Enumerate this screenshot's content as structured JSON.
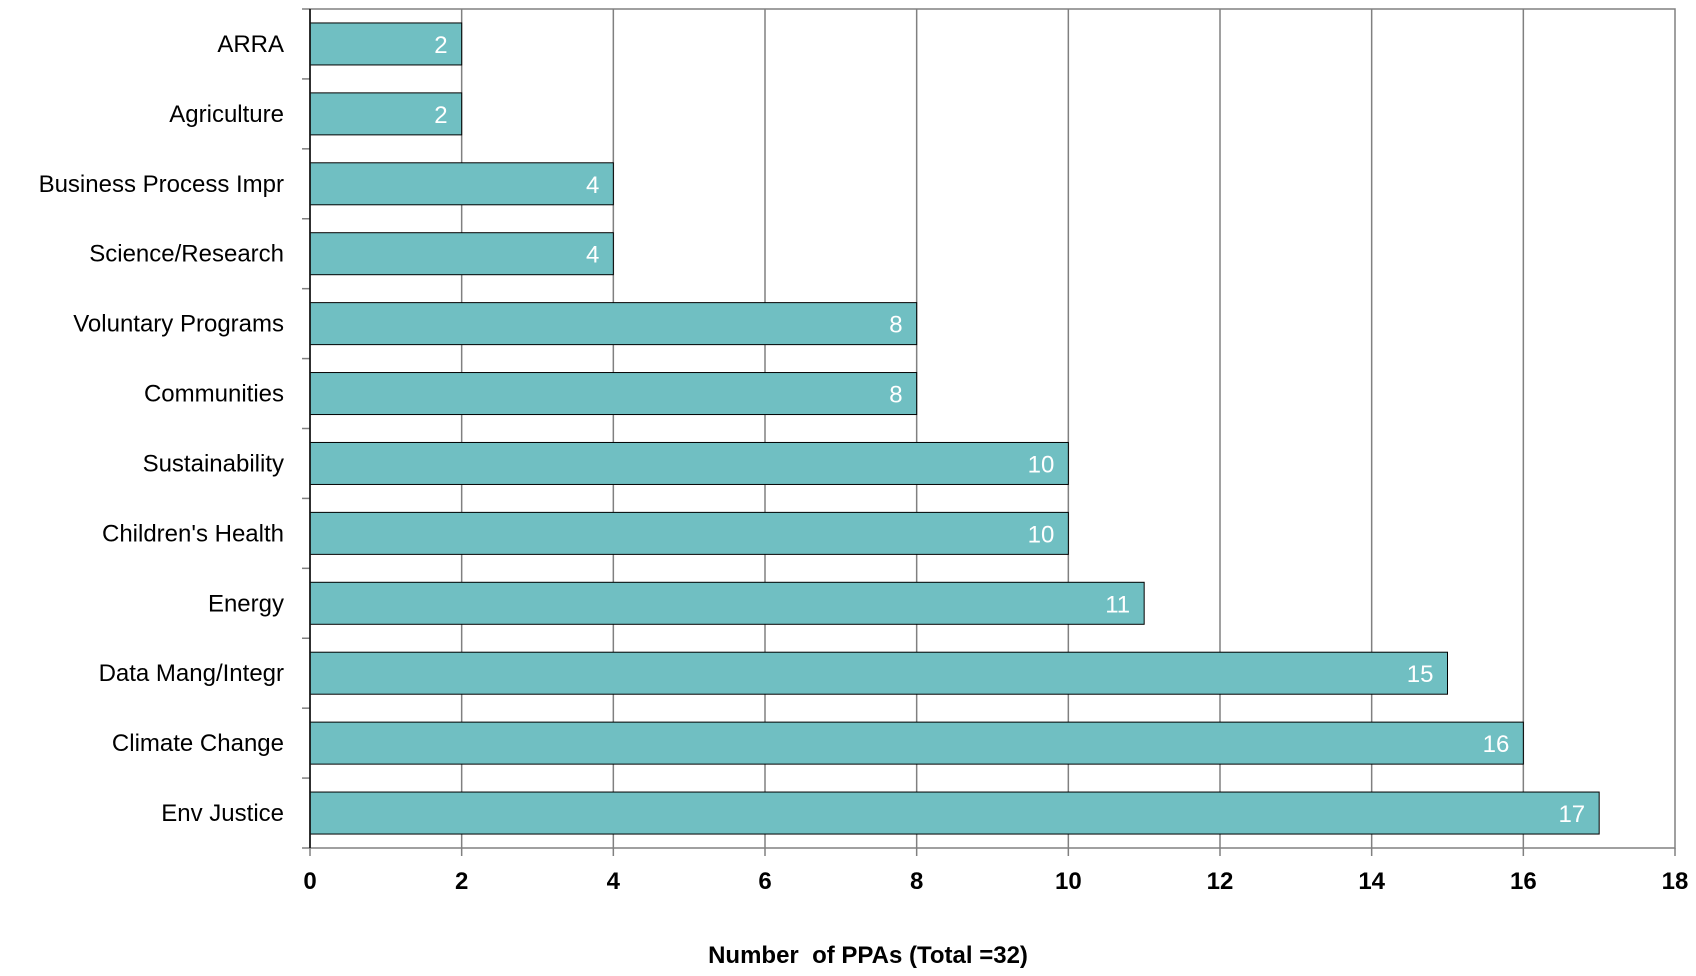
{
  "chart_data": {
    "type": "bar",
    "orientation": "horizontal",
    "categories": [
      "ARRA",
      "Agriculture",
      "Business Process Impr",
      "Science/Research",
      "Voluntary Programs",
      "Communities",
      "Sustainability",
      "Children's Health",
      "Energy",
      "Data Mang/Integr",
      "Climate Change",
      "Env Justice"
    ],
    "values": [
      2,
      2,
      4,
      4,
      8,
      8,
      10,
      10,
      11,
      15,
      16,
      17
    ],
    "data_labels": [
      "2",
      "2",
      "4",
      "4",
      "8",
      "8",
      "10",
      "10",
      "11",
      "15",
      "16",
      "17"
    ],
    "title": "",
    "xlabel": "Number  of PPAs (Total =32)",
    "ylabel": "",
    "xlim": [
      0,
      18
    ],
    "xticks": [
      "0",
      "2",
      "4",
      "6",
      "8",
      "10",
      "12",
      "14",
      "16",
      "18"
    ],
    "grid": "vertical",
    "legend": "none",
    "colors": {
      "bar_fill": "#70bfc2",
      "bar_edge": "#000000",
      "grid": "#808080",
      "frame": "#000000",
      "bar_label": "#ffffff"
    }
  }
}
